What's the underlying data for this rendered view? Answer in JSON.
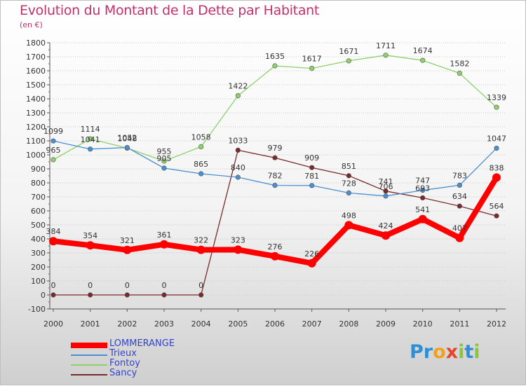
{
  "chart_data": {
    "type": "line",
    "title": "Evolution du Montant de la Dette par Habitant",
    "subtitle": "(en €)",
    "x": [
      "2000",
      "2001",
      "2002",
      "2003",
      "2004",
      "2005",
      "2006",
      "2007",
      "2008",
      "2009",
      "2010",
      "2011",
      "2012"
    ],
    "ylim": [
      -100,
      1800
    ],
    "yticks": [
      -100,
      0,
      100,
      200,
      300,
      400,
      500,
      600,
      700,
      800,
      900,
      1000,
      1100,
      1200,
      1300,
      1400,
      1500,
      1600,
      1700,
      1800
    ],
    "grid": "horizontal dotted",
    "legend_position": "bottom-left",
    "series": [
      {
        "name": "LOMMERANGE",
        "color": "#ff0000",
        "values": [
          384,
          354,
          321,
          361,
          322,
          323,
          276,
          226,
          498,
          424,
          541,
          407,
          838
        ]
      },
      {
        "name": "Trieux",
        "color": "#4a90d0",
        "values": [
          1099,
          1041,
          1052,
          905,
          865,
          840,
          782,
          781,
          728,
          706,
          747,
          783,
          1047
        ]
      },
      {
        "name": "Fontoy",
        "color": "#8ed16b",
        "values": [
          965,
          1114,
          1048,
          955,
          1058,
          1422,
          1635,
          1617,
          1671,
          1711,
          1674,
          1582,
          1339
        ]
      },
      {
        "name": "Sancy",
        "color": "#7a2a2a",
        "values": [
          0,
          0,
          0,
          0,
          0,
          1033,
          979,
          909,
          851,
          741,
          693,
          634,
          564
        ]
      }
    ]
  },
  "brand": {
    "p1": "Pr",
    "p2": "o",
    "p3": "x",
    "p4": "i",
    "p5": "t",
    "p6": "i"
  }
}
